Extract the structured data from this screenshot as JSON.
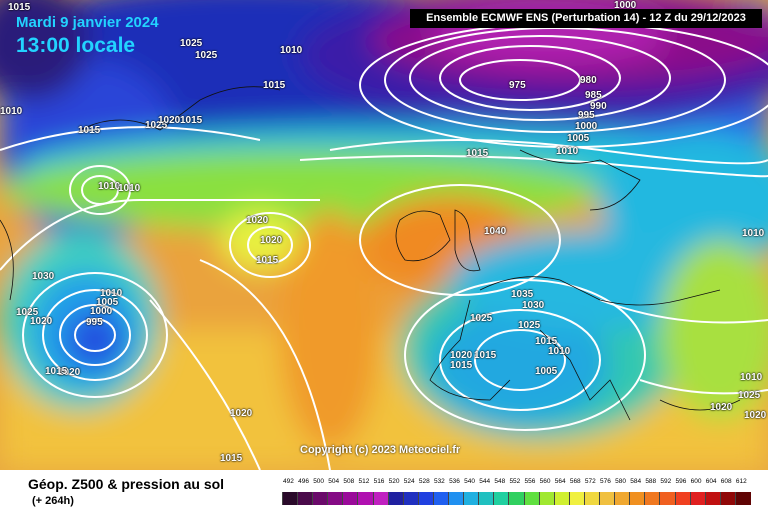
{
  "header": {
    "date": "Mardi 9 janvier 2024",
    "time": "13:00 locale",
    "run_info": "Ensemble ECMWF ENS  (Perturbation 14)  -  12 Z du 29/12/2023"
  },
  "copyright": "Copyright (c) 2023 Meteociel.fr",
  "footer": {
    "title": "Géop. Z500 & pression au sol",
    "subtitle": "(+ 264h)"
  },
  "isobar_labels": [
    "1015",
    "1025",
    "1010",
    "1025",
    "1015",
    "1010",
    "1025",
    "1020",
    "1015",
    "1015",
    "1010",
    "1010",
    "975",
    "980",
    "985",
    "990",
    "995",
    "1000",
    "1005",
    "1010",
    "1015",
    "1000",
    "1010",
    "1020",
    "1020",
    "1015",
    "1040",
    "1030",
    "1010",
    "1005",
    "1000",
    "995",
    "1020",
    "1025",
    "1020",
    "1015",
    "1035",
    "1030",
    "1025",
    "1025",
    "1015",
    "1020",
    "1015",
    "1015",
    "1010",
    "1020",
    "1005",
    "1015",
    "1020",
    "1010",
    "1025",
    "1020"
  ],
  "scale": {
    "labels": [
      "492",
      "496",
      "500",
      "504",
      "508",
      "512",
      "516",
      "520",
      "524",
      "528",
      "532",
      "536",
      "540",
      "544",
      "548",
      "552",
      "556",
      "560",
      "564",
      "568",
      "572",
      "576",
      "580",
      "584",
      "588",
      "592",
      "596",
      "600",
      "604",
      "608",
      "612"
    ],
    "colors": [
      "#2a0a2a",
      "#4a0a4a",
      "#6a0a6a",
      "#850a85",
      "#9a0a9a",
      "#b010b0",
      "#c020c0",
      "#2020a0",
      "#2030c0",
      "#2040e0",
      "#2060f0",
      "#2090f0",
      "#20b0e0",
      "#20c0c0",
      "#20d0a0",
      "#30d060",
      "#60e040",
      "#a0e830",
      "#d0f030",
      "#f0f040",
      "#f0d840",
      "#f0c040",
      "#f0a830",
      "#f09020",
      "#f07820",
      "#f06020",
      "#f04020",
      "#e02020",
      "#c01010",
      "#900808",
      "#600404"
    ]
  }
}
